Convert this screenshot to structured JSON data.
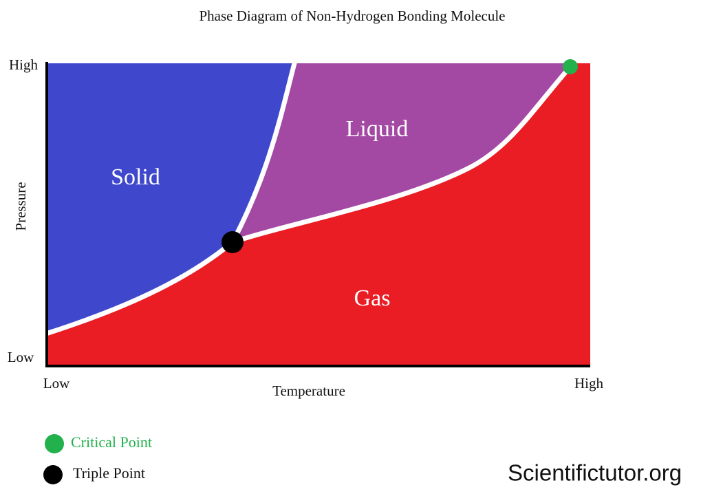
{
  "title": "Phase Diagram of Non-Hydrogen Bonding Molecule",
  "axes": {
    "y": {
      "label": "Pressure",
      "high": "High",
      "low": "Low"
    },
    "x": {
      "label": "Temperature",
      "low": "Low",
      "high": "High"
    }
  },
  "regions": [
    "Solid",
    "Liquid",
    "Gas"
  ],
  "legend": [
    {
      "label": "Critical Point"
    },
    {
      "label": "Triple Point"
    }
  ],
  "watermark": "Scientifictutor.org"
}
